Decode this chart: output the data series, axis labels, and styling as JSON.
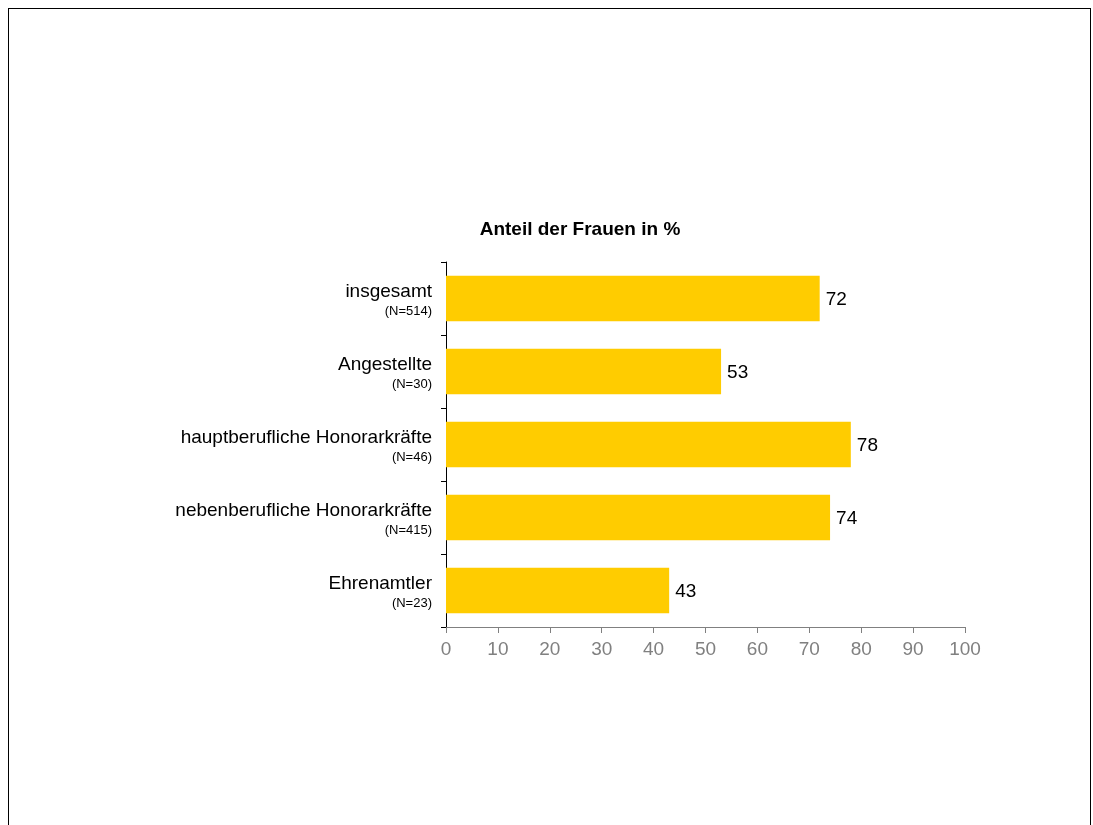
{
  "chart_data": {
    "type": "bar",
    "orientation": "horizontal",
    "title": "Anteil der Frauen in %",
    "categories": [
      "insgesamt\n(N=514)",
      "Angestellte\n(N=30)",
      "hauptberufliche Honorarkräfte\n(N=46)",
      "nebenberufliche Honorarkräfte\n(N=415)",
      "Ehrenamtler\n(N=23)"
    ],
    "values": [
      72,
      53,
      78,
      74,
      43
    ],
    "color": "#ffcc00",
    "xlim": [
      0,
      100
    ],
    "xticks": [
      0,
      10,
      20,
      30,
      40,
      50,
      60,
      70,
      80,
      90,
      100
    ],
    "data_labels": true
  }
}
